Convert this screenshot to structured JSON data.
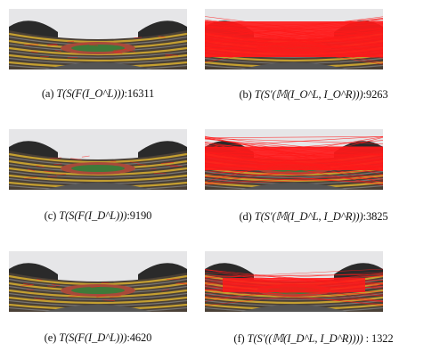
{
  "figure": {
    "panels": [
      {
        "id": "a",
        "letter": "(a)",
        "formula": "T(S(F(I_O^L)))",
        "count": "16311",
        "matches": "sparse"
      },
      {
        "id": "b",
        "letter": "(b)",
        "formula": "T(S′(𝕄(I_O^L, I_O^R)))",
        "count": "9263",
        "matches": "dense"
      },
      {
        "id": "c",
        "letter": "(c)",
        "formula": "T(S(F(I_D^L)))",
        "count": "9190",
        "matches": "sparse"
      },
      {
        "id": "d",
        "letter": "(d)",
        "formula": "T(S′(𝕄(I_D^L, I_D^R)))",
        "count": "3825",
        "matches": "dense"
      },
      {
        "id": "e",
        "letter": "(e)",
        "formula": "T(S(F(I_D^L)))",
        "count": "4620",
        "matches": "sparse"
      },
      {
        "id": "f",
        "letter": "(f)",
        "formula": "T(S′((𝕄(I_D^L, I_D^R))))",
        "count": "1322",
        "matches": "medium"
      }
    ],
    "colors": {
      "match_lines": "#ff1a1a",
      "sky": "#e6e6e8",
      "seats_yellow": "#d9b030",
      "track_red": "#a84a3a",
      "field_green": "#3f7a3a"
    }
  }
}
